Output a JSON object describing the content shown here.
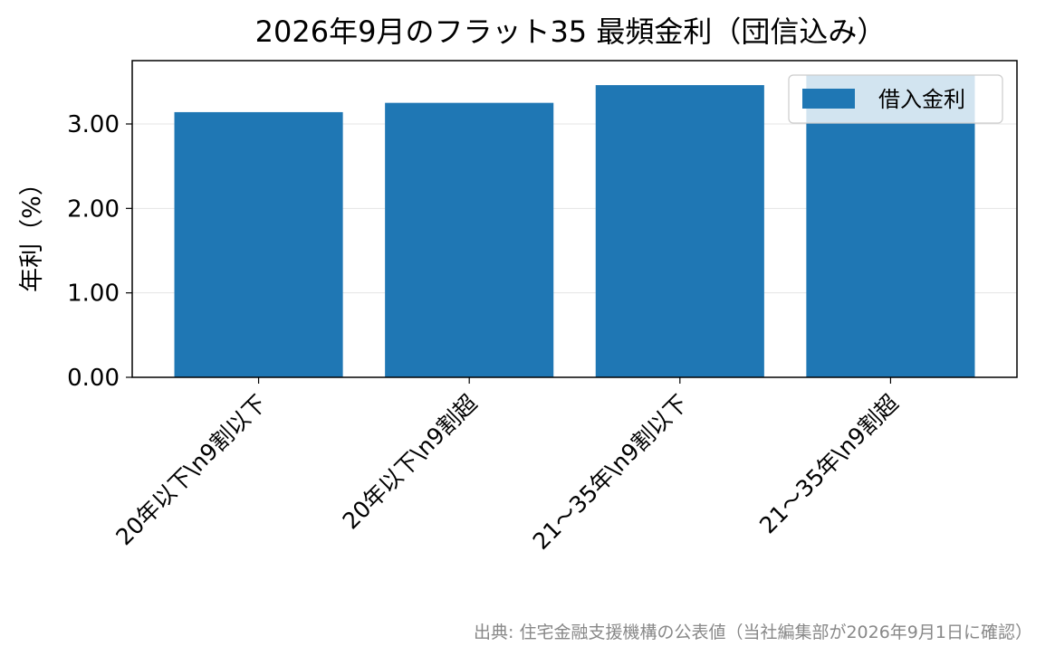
{
  "chart_data": {
    "type": "bar",
    "title": "2026年9月のフラット35 最頻金利（団信込み）",
    "xlabel": "",
    "ylabel": "年利（%）",
    "categories": [
      "20年以下\\n9割以下",
      "20年以下\\n9割超",
      "21〜35年\\n9割以下",
      "21〜35年\\n9割超"
    ],
    "series": [
      {
        "name": "借入金利",
        "values": [
          3.14,
          3.25,
          3.46,
          3.58
        ],
        "color": "#1f77b4"
      }
    ],
    "ylim": [
      0,
      3.75
    ],
    "yticks": [
      0,
      1,
      2,
      3
    ],
    "ytick_labels": [
      "0.00",
      "1.00",
      "2.00",
      "3.00"
    ],
    "grid": "y",
    "legend": "top-right"
  },
  "footer": {
    "source_note": "出典: 住宅金融支援機構の公表値（当社編集部が2026年9月1日に確認）"
  }
}
